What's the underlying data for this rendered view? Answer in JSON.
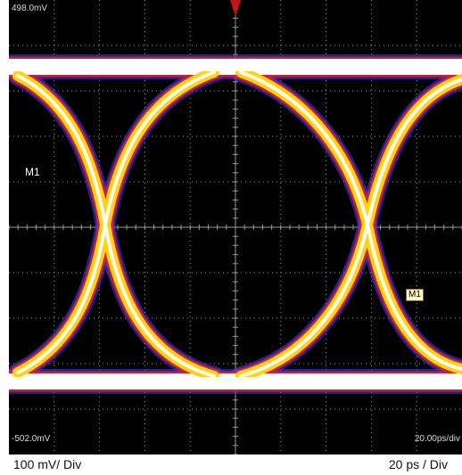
{
  "scope": {
    "top_ref_label": "498.0mV",
    "bottom_ref_label": "-502.0mV",
    "timebase_label": "20.00ps/div",
    "marker_left_label": "M1",
    "marker_trace_label": "M1",
    "trigger_marker_icon": "trigger-arrow-icon",
    "colors": {
      "background": "#000000",
      "grid": "#9a9a9a",
      "trace_hot": "#ffffff",
      "trace_mid": "#ffd21a",
      "trace_edge": "#e02020",
      "trace_outer": "#4040ff",
      "trigger": "#c01818"
    }
  },
  "captions": {
    "vertical_scale": "100 mV/ Div",
    "horizontal_scale": "20 ps / Div"
  }
}
